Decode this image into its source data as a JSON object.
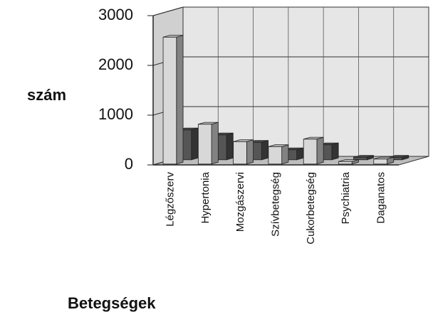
{
  "chart_data": {
    "type": "bar3d",
    "y_label": "szám",
    "x_label": "Betegségek",
    "categories": [
      "Légzőszerv",
      "Hypertonia",
      "Mozgászervi",
      "Szívbetegség",
      "Cukorbetegség",
      "Psychiatria",
      "Daganatos"
    ],
    "series": [
      {
        "color": "#d8d8d8",
        "values": [
          2550,
          800,
          450,
          350,
          500,
          50,
          100
        ]
      },
      {
        "color": "#555555",
        "values": [
          600,
          500,
          350,
          200,
          300,
          50,
          50
        ]
      }
    ],
    "ylim": [
      0,
      3000
    ],
    "yticks": [
      0,
      1000,
      2000,
      3000
    ],
    "grid": true
  }
}
